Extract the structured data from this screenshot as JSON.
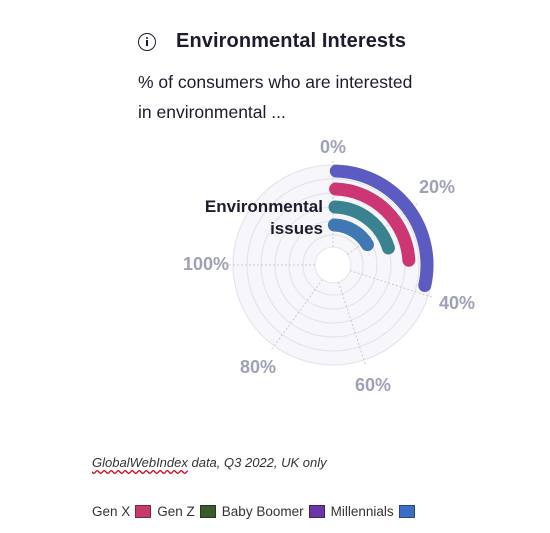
{
  "header": {
    "icon": "info-icon",
    "title": "Environmental Interests",
    "subtitle": "% of consumers who are interested in environmental ..."
  },
  "chart_data": {
    "type": "radial-bar",
    "categories": [
      "Environmental issues"
    ],
    "category_label_lines": [
      "Environmental",
      "issues"
    ],
    "axis_ticks": [
      "0%",
      "20%",
      "40%",
      "60%",
      "80%",
      "100%"
    ],
    "axis_range": [
      0,
      100
    ],
    "series": [
      {
        "name": "Millennials",
        "values": [
          38
        ],
        "color": "#5b5bc2"
      },
      {
        "name": "Gen X",
        "values": [
          32
        ],
        "color": "#cc3672"
      },
      {
        "name": "Gen Z",
        "values": [
          27
        ],
        "color": "#3b8290"
      },
      {
        "name": "Baby Boomer",
        "values": [
          22
        ],
        "color": "#3f78b2"
      }
    ],
    "grid": true
  },
  "source": {
    "brand": "GlobalWebIndex",
    "text": " data, Q3 2022, UK only"
  },
  "legend": [
    {
      "label": "Gen X",
      "color": "#c53a6a"
    },
    {
      "label": "Gen Z",
      "color": "#3b5a2a"
    },
    {
      "label": "Baby Boomer",
      "color": "#6b35a8"
    },
    {
      "label": "Millennials",
      "color": "#3b6fc4"
    }
  ]
}
